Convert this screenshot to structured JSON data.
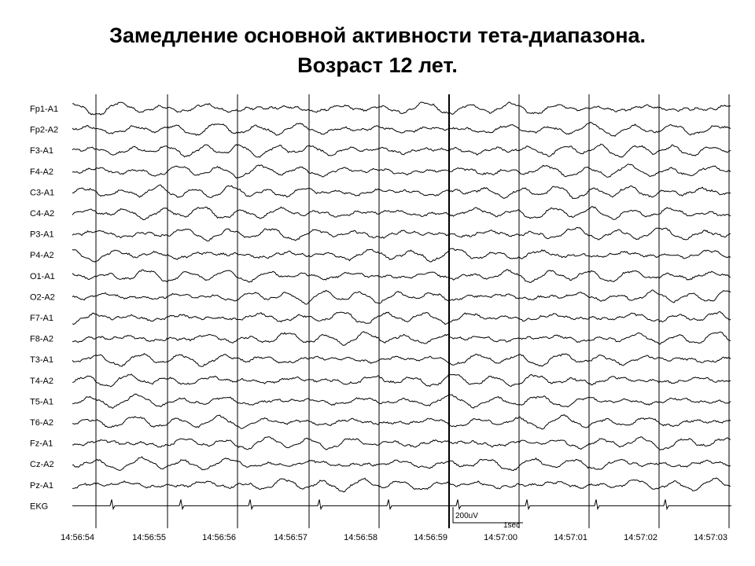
{
  "title": {
    "line1": "Замедление основной активности тета-диапазона.",
    "line2": "Возраст 12 лет."
  },
  "channels": [
    "Fp1-A1",
    "Fp2-A2",
    "F3-A1",
    "F4-A2",
    "C3-A1",
    "C4-A2",
    "P3-A1",
    "P4-A2",
    "O1-A1",
    "O2-A2",
    "F7-A1",
    "F8-A2",
    "T3-A1",
    "T4-A2",
    "T5-A1",
    "T6-A2",
    "Fz-A1",
    "Cz-A2",
    "Pz-A1",
    "EKG"
  ],
  "times": [
    "14:56:54",
    "14:56:55",
    "14:56:56",
    "14:56:57",
    "14:56:58",
    "14:56:59",
    "14:57:00",
    "14:57:01",
    "14:57:02",
    "14:57:03"
  ],
  "scale": {
    "amplitude": "200uV",
    "time": "1sec"
  }
}
